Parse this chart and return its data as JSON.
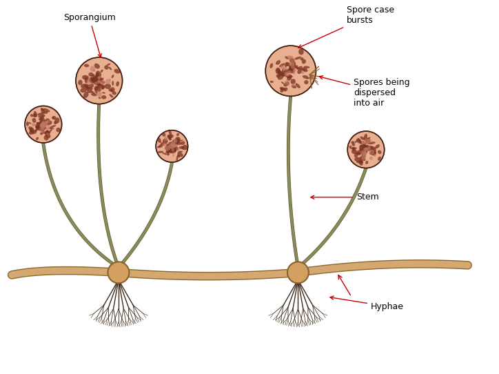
{
  "background_color": "#ffffff",
  "stem_color": "#8a8a5a",
  "stem_edge_color": "#5a5a30",
  "stem_lw": 2.5,
  "runner_color": "#d4a870",
  "runner_edge_color": "#8b6830",
  "runner_lw": 8,
  "sporangium_base_color": "#c07860",
  "sporangium_light_color": "#e8b090",
  "sporangium_dark_color": "#7a3020",
  "sporangium_edge_color": "#4a2010",
  "root_color": "#3a2a1a",
  "node_color": "#d4a060",
  "node_edge_color": "#8b6030",
  "label_color": "#000000",
  "arrow_color": "#cc0000",
  "label_fontsize": 9,
  "labels": {
    "sporangium": "Sporangium",
    "spore_case": "Spore case\nbursts",
    "spores_dispersed": "Spores being\ndispersed\ninto air",
    "stem": "Stem",
    "hyphae": "Hyphae"
  }
}
